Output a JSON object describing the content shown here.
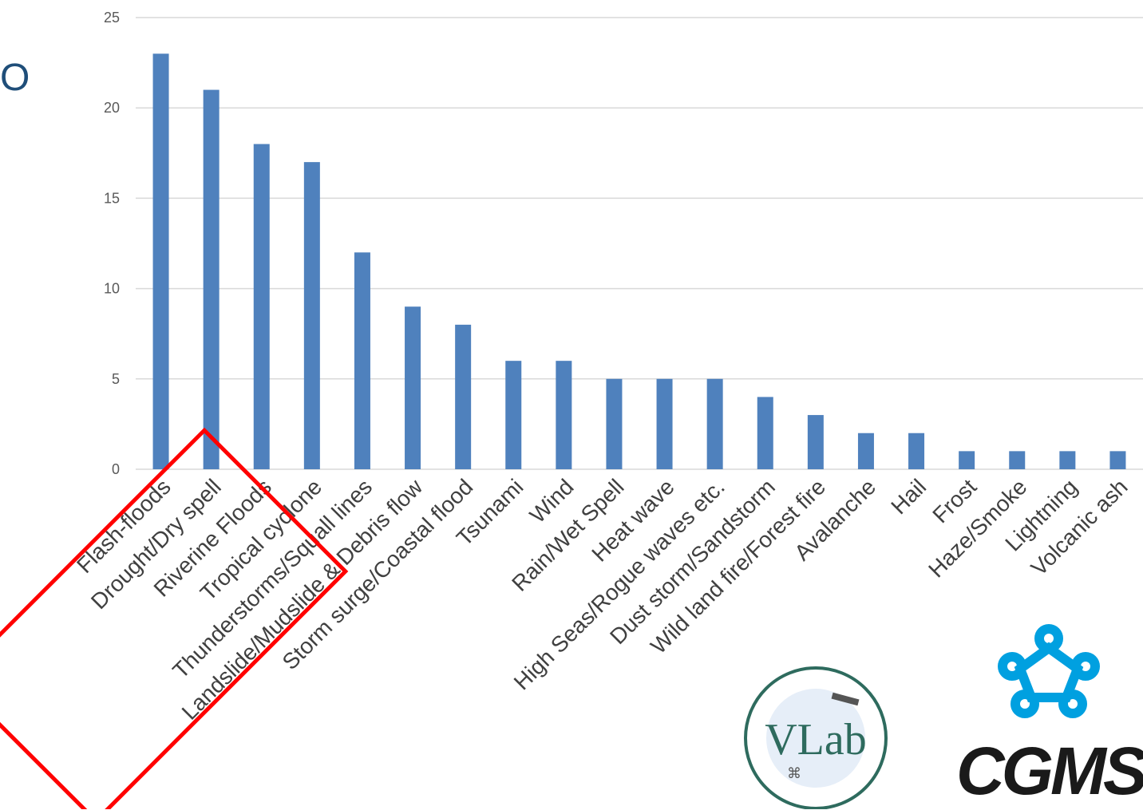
{
  "partial_title": "O",
  "chart_data": {
    "type": "bar",
    "categories": [
      "Flash-floods",
      "Drought/Dry spell",
      "Riverine Floods",
      "Tropical cyclone",
      "Thunderstorms/Squall lines",
      "Landslide/Mudslide & Debris flow",
      "Storm surge/Coastal flood",
      "Tsunami",
      "Wind",
      "Rain/Wet Spell",
      "Heat wave",
      "High Seas/Rogue waves etc.",
      "Dust storm/Sandstorm",
      "Wild land fire/Forest fire",
      "Avalanche",
      "Hail",
      "Frost",
      "Haze/Smoke",
      "Lightning",
      "Volcanic ash"
    ],
    "values": [
      23,
      21,
      18,
      17,
      12,
      9,
      8,
      6,
      6,
      5,
      5,
      5,
      4,
      3,
      2,
      2,
      1,
      1,
      1,
      1
    ],
    "yticks": [
      0,
      5,
      10,
      15,
      20,
      25
    ],
    "ylim": [
      0,
      25
    ],
    "grid": true,
    "bar_color": "#4f81bd",
    "highlight_box_color": "#ff0000"
  },
  "logos": {
    "vlab_text": "VLab",
    "cgms_text": "CGMS",
    "vlab_color": "#2e6b5e",
    "cgms_icon_color": "#00a0e0"
  }
}
